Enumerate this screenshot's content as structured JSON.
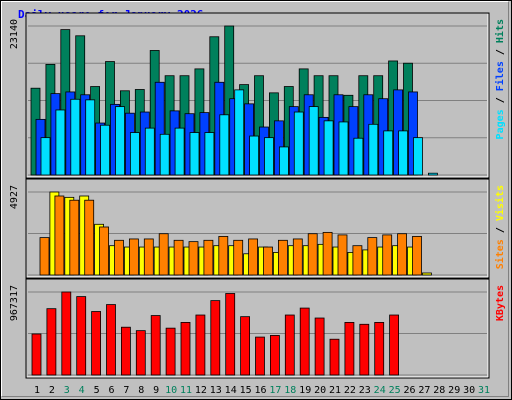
{
  "chart_data": {
    "type": "bar",
    "title": "Daily usage for January 2026",
    "categories": [
      "1",
      "2",
      "3",
      "4",
      "5",
      "6",
      "7",
      "8",
      "9",
      "10",
      "11",
      "12",
      "13",
      "14",
      "15",
      "16",
      "17",
      "18",
      "19",
      "20",
      "21",
      "22",
      "23",
      "24",
      "25",
      "26",
      "27",
      "28",
      "29",
      "30",
      "31"
    ],
    "weekend_days": [
      "3",
      "4",
      "10",
      "11",
      "17",
      "18",
      "24",
      "25",
      "31"
    ],
    "colors": {
      "hits": "#00805c",
      "files": "#0040ff",
      "pages": "#00e0ff",
      "visits": "#ffff00",
      "sites": "#ff8000",
      "kbytes": "#ff0000",
      "weekday_label": "#000000",
      "weekend_label": "#00805c",
      "title": "#0000ff",
      "panel_bg": "#c0c0c0",
      "grid": "#808080"
    },
    "panels": [
      {
        "id": "hits-files-pages",
        "max_label": "23140",
        "ymax": 23140,
        "right_labels": [
          {
            "text": "Pages",
            "color": "#00e0ff"
          },
          {
            "text": " / ",
            "color": "#000000"
          },
          {
            "text": "Files",
            "color": "#0040ff"
          },
          {
            "text": " / ",
            "color": "#000000"
          },
          {
            "text": "Hits",
            "color": "#00805c"
          }
        ],
        "series": [
          {
            "name": "Hits",
            "color": "#00805c",
            "values": [
              13480,
              17180,
              22580,
              21620,
              13740,
              17620,
              13080,
              13280,
              19340,
              15420,
              15420,
              16480,
              21470,
              23140,
              14040,
              15420,
              12760,
              13740,
              16480,
              15420,
              15420,
              12380,
              15420,
              15420,
              17710,
              17360,
              0,
              0,
              0,
              0,
              0
            ]
          },
          {
            "name": "Files",
            "color": "#0040ff",
            "values": [
              8640,
              12640,
              12900,
              12460,
              8070,
              10970,
              9600,
              9780,
              14400,
              9960,
              9520,
              9690,
              14400,
              11850,
              11050,
              7450,
              8410,
              10620,
              12460,
              8950,
              12460,
              10620,
              12460,
              11850,
              13220,
              12900,
              0,
              0,
              0,
              0,
              0
            ]
          },
          {
            "name": "Pages",
            "color": "#00e0ff",
            "values": [
              5800,
              10100,
              11760,
              11670,
              7730,
              10620,
              6590,
              7280,
              6320,
              7280,
              6590,
              6590,
              9350,
              13220,
              6050,
              5800,
              4360,
              9780,
              10620,
              8410,
              8240,
              5710,
              7870,
              6850,
              6850,
              5800,
              280,
              0,
              0,
              0,
              0
            ]
          }
        ]
      },
      {
        "id": "visits-sites",
        "max_label": "4927",
        "ymax": 4927,
        "right_labels": [
          {
            "text": "Sites",
            "color": "#ff8000"
          },
          {
            "text": " / ",
            "color": "#000000"
          },
          {
            "text": "Visits",
            "color": "#ffff00"
          }
        ],
        "series": [
          {
            "name": "Visits",
            "color": "#ffff00",
            "values": [
              0,
              4927,
              4610,
              4690,
              3010,
              1740,
              1660,
              1660,
              1660,
              1660,
              1660,
              1660,
              1740,
              1740,
              1260,
              1660,
              1340,
              1740,
              1740,
              1820,
              1660,
              1340,
              1490,
              1660,
              1740,
              1660,
              120,
              0,
              0,
              0,
              0
            ]
          },
          {
            "name": "Sites",
            "color": "#ff8000",
            "values": [
              2220,
              4690,
              4440,
              4440,
              2850,
              2060,
              2140,
              2140,
              2450,
              2060,
              1980,
              2060,
              2290,
              2060,
              2140,
              1660,
              2060,
              2140,
              2450,
              2530,
              2380,
              1740,
              2220,
              2380,
              2450,
              2290,
              0,
              0,
              0,
              0,
              0
            ]
          }
        ]
      },
      {
        "id": "kbytes",
        "max_label": "967317",
        "ymax": 967317,
        "right_labels": [
          {
            "text": "KBytes",
            "color": "#ff0000"
          }
        ],
        "series": [
          {
            "name": "KBytes",
            "color": "#ff0000",
            "values": [
              478000,
              773000,
              967317,
              914000,
              740000,
              821000,
              557000,
              517000,
              693000,
              546000,
              613000,
              699000,
              867000,
              950000,
              680000,
              442000,
              461000,
              699000,
              780000,
              664000,
              417000,
              613000,
              591000,
              613000,
              699000,
              0,
              0,
              0,
              0,
              0,
              0
            ]
          }
        ]
      }
    ]
  }
}
